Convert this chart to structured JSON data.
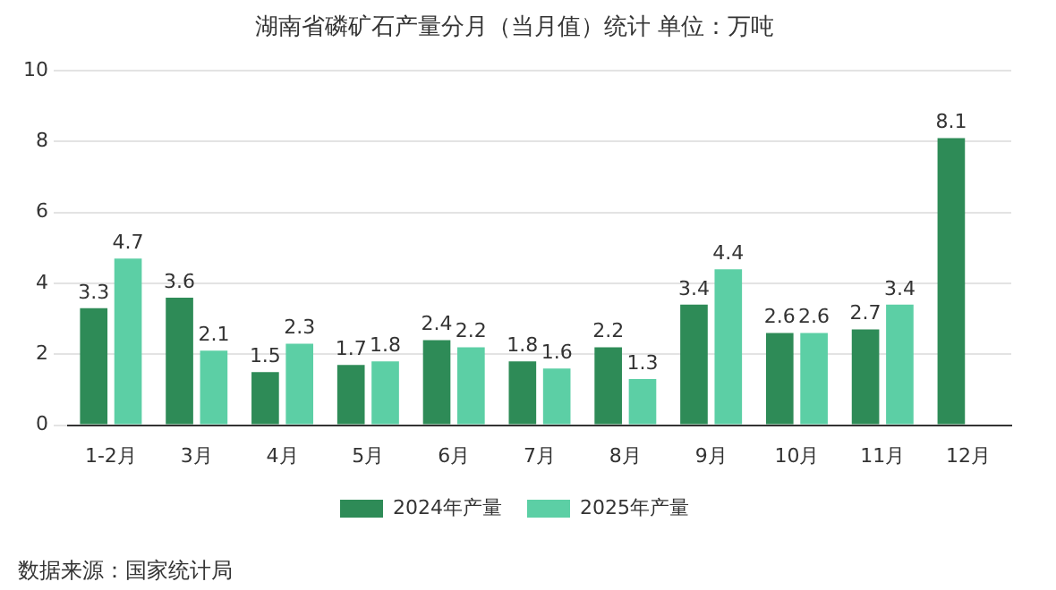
{
  "chart_data": {
    "type": "bar",
    "title": "湖南省磷矿石产量分月（当月值）统计 单位：万吨",
    "categories": [
      "1-2月",
      "3月",
      "4月",
      "5月",
      "6月",
      "7月",
      "8月",
      "9月",
      "10月",
      "11月",
      "12月"
    ],
    "series": [
      {
        "name": "2024年产量",
        "color": "#2e8b57",
        "values": [
          3.3,
          3.6,
          1.5,
          1.7,
          2.4,
          1.8,
          2.2,
          3.4,
          2.6,
          2.7,
          8.1
        ]
      },
      {
        "name": "2025年产量",
        "color": "#5ccfa5",
        "values": [
          4.7,
          2.1,
          2.3,
          1.8,
          2.2,
          1.6,
          1.3,
          4.4,
          2.6,
          3.4,
          null
        ]
      }
    ],
    "ylim": [
      0,
      10
    ],
    "yticks": [
      0,
      2,
      4,
      6,
      8,
      10
    ],
    "grid": "y",
    "legend": "bottom",
    "data_labels": true,
    "annotations": [
      "数据来源：国家统计局"
    ]
  }
}
